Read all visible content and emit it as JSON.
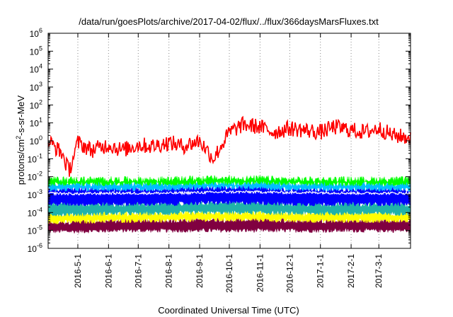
{
  "chart_data": {
    "type": "line",
    "title": "/data/run/goesPlots/archive/2017-04-02/flux/../flux/366daysMarsFluxes.txt",
    "xlabel": "Coordinated Universal Time (UTC)",
    "ylabel": "protons/cm2-s-sr-MeV",
    "ylabel_parts": {
      "pre": "protons/cm",
      "sup": "2",
      "post": "-s-sr-MeV"
    },
    "x_range": [
      "2016-04-01",
      "2017-04-02"
    ],
    "y_scale": "log",
    "ylim": [
      1e-06,
      1000000.0
    ],
    "y_tick_labels": [
      {
        "base": "10",
        "exp": "-6"
      },
      {
        "base": "10",
        "exp": "-5"
      },
      {
        "base": "10",
        "exp": "-4"
      },
      {
        "base": "10",
        "exp": "-3"
      },
      {
        "base": "10",
        "exp": "-2"
      },
      {
        "base": "10",
        "exp": "-1"
      },
      {
        "base": "10",
        "exp": "0"
      },
      {
        "base": "10",
        "exp": "1"
      },
      {
        "base": "10",
        "exp": "2"
      },
      {
        "base": "10",
        "exp": "3"
      },
      {
        "base": "10",
        "exp": "4"
      },
      {
        "base": "10",
        "exp": "5"
      },
      {
        "base": "10",
        "exp": "6"
      }
    ],
    "x_ticks": [
      {
        "date": "2016-05-01",
        "label": "2016-5-1"
      },
      {
        "date": "2016-06-01",
        "label": "2016-6-1"
      },
      {
        "date": "2016-07-01",
        "label": "2016-7-1"
      },
      {
        "date": "2016-08-01",
        "label": "2016-8-1"
      },
      {
        "date": "2016-09-01",
        "label": "2016-9-1"
      },
      {
        "date": "2016-10-01",
        "label": "2016-10-1"
      },
      {
        "date": "2016-11-01",
        "label": "2016-11-1"
      },
      {
        "date": "2016-12-01",
        "label": "2016-12-1"
      },
      {
        "date": "2017-01-01",
        "label": "2017-1-1"
      },
      {
        "date": "2017-02-01",
        "label": "2017-2-1"
      },
      {
        "date": "2017-03-01",
        "label": "2017-3-1"
      }
    ],
    "grid": true,
    "grid_style": "dotted",
    "legend": "none",
    "series": [
      {
        "color": "#800040",
        "kind": "band",
        "x": [
          "2016-04-01",
          "2016-05-01",
          "2016-06-01",
          "2016-07-01",
          "2016-08-01",
          "2016-09-01",
          "2016-10-01",
          "2016-11-01",
          "2016-12-01",
          "2017-01-01",
          "2017-02-01",
          "2017-03-01",
          "2017-04-02"
        ],
        "low": [
          9e-06,
          9e-06,
          1e-05,
          1e-05,
          1e-05,
          1e-05,
          1e-05,
          1e-05,
          1e-05,
          1e-05,
          1e-05,
          1e-05,
          1e-05
        ],
        "high": [
          3e-05,
          3e-05,
          3.5e-05,
          3.5e-05,
          3.5e-05,
          4e-05,
          4e-05,
          4e-05,
          3.5e-05,
          3.5e-05,
          3.5e-05,
          3.5e-05,
          3.5e-05
        ]
      },
      {
        "color": "#ffff00",
        "kind": "band",
        "x": [
          "2016-04-01",
          "2016-05-01",
          "2016-06-01",
          "2016-07-01",
          "2016-08-01",
          "2016-09-01",
          "2016-10-01",
          "2016-11-01",
          "2016-12-01",
          "2017-01-01",
          "2017-02-01",
          "2017-03-01",
          "2017-04-02"
        ],
        "low": [
          3e-05,
          3e-05,
          3.5e-05,
          3.5e-05,
          3.5e-05,
          4e-05,
          4e-05,
          4e-05,
          3.5e-05,
          3.5e-05,
          3.5e-05,
          3.5e-05,
          3.5e-05
        ],
        "high": [
          8e-05,
          8e-05,
          9e-05,
          9e-05,
          9e-05,
          0.0001,
          0.0001,
          0.0001,
          9e-05,
          9e-05,
          9e-05,
          9e-05,
          9e-05
        ]
      },
      {
        "color": "#20b2aa",
        "kind": "band",
        "x": [
          "2016-04-01",
          "2016-05-01",
          "2016-06-01",
          "2016-07-01",
          "2016-08-01",
          "2016-09-01",
          "2016-10-01",
          "2016-11-01",
          "2016-12-01",
          "2017-01-01",
          "2017-02-01",
          "2017-03-01",
          "2017-04-02"
        ],
        "low": [
          8e-05,
          8e-05,
          9e-05,
          9e-05,
          9e-05,
          0.0001,
          0.0001,
          0.0001,
          9e-05,
          9e-05,
          9e-05,
          9e-05,
          9e-05
        ],
        "high": [
          0.0003,
          0.0003,
          0.0003,
          0.0003,
          0.0003,
          0.00035,
          0.00035,
          0.00035,
          0.0003,
          0.0003,
          0.0003,
          0.0003,
          0.0003
        ]
      },
      {
        "color": "#0000ff",
        "kind": "band",
        "x": [
          "2016-04-01",
          "2016-05-01",
          "2016-06-01",
          "2016-07-01",
          "2016-08-01",
          "2016-09-01",
          "2016-10-01",
          "2016-11-01",
          "2016-12-01",
          "2017-01-01",
          "2017-02-01",
          "2017-03-01",
          "2017-04-02"
        ],
        "low": [
          0.0003,
          0.0003,
          0.0003,
          0.0003,
          0.0003,
          0.00035,
          0.00035,
          0.00035,
          0.0003,
          0.0003,
          0.0003,
          0.0003,
          0.0003
        ],
        "high": [
          0.002,
          0.002,
          0.002,
          0.002,
          0.002,
          0.0025,
          0.0025,
          0.0025,
          0.002,
          0.002,
          0.002,
          0.002,
          0.002
        ]
      },
      {
        "color": "#00c0ff",
        "kind": "band",
        "x": [
          "2016-04-01",
          "2016-05-01",
          "2016-06-01",
          "2016-07-01",
          "2016-08-01",
          "2016-09-01",
          "2016-10-01",
          "2016-11-01",
          "2016-12-01",
          "2017-01-01",
          "2017-02-01",
          "2017-03-01",
          "2017-04-02"
        ],
        "low": [
          0.002,
          0.002,
          0.002,
          0.002,
          0.002,
          0.0025,
          0.0025,
          0.0025,
          0.002,
          0.002,
          0.002,
          0.002,
          0.002
        ],
        "high": [
          0.004,
          0.004,
          0.004,
          0.004,
          0.004,
          0.0045,
          0.0045,
          0.0045,
          0.004,
          0.004,
          0.004,
          0.004,
          0.004
        ]
      },
      {
        "color": "#00ff00",
        "kind": "band",
        "x": [
          "2016-04-01",
          "2016-05-01",
          "2016-06-01",
          "2016-07-01",
          "2016-08-01",
          "2016-09-01",
          "2016-10-01",
          "2016-11-01",
          "2016-12-01",
          "2017-01-01",
          "2017-02-01",
          "2017-03-01",
          "2017-04-02"
        ],
        "low": [
          0.004,
          0.004,
          0.004,
          0.004,
          0.004,
          0.0045,
          0.0045,
          0.0045,
          0.004,
          0.004,
          0.004,
          0.004,
          0.004
        ],
        "high": [
          0.007,
          0.007,
          0.007,
          0.007,
          0.007,
          0.008,
          0.008,
          0.008,
          0.007,
          0.007,
          0.007,
          0.007,
          0.007
        ]
      },
      {
        "color": "#ffffff",
        "kind": "line",
        "x": [
          "2016-04-01",
          "2016-05-01",
          "2016-06-01",
          "2016-07-01",
          "2016-08-01",
          "2016-09-01",
          "2016-10-01",
          "2016-11-01",
          "2016-12-01",
          "2017-01-01",
          "2017-02-01",
          "2017-03-01",
          "2017-04-02"
        ],
        "values": [
          0.0012,
          0.0011,
          0.0012,
          0.0012,
          0.0012,
          0.0013,
          0.0014,
          0.0014,
          0.0013,
          0.0013,
          0.0012,
          0.0012,
          0.0012
        ]
      },
      {
        "color": "#ff0000",
        "kind": "line",
        "x": [
          "2016-04-01",
          "2016-04-15",
          "2016-04-22",
          "2016-05-01",
          "2016-05-15",
          "2016-06-01",
          "2016-06-15",
          "2016-07-01",
          "2016-07-15",
          "2016-08-01",
          "2016-08-15",
          "2016-09-01",
          "2016-09-15",
          "2016-10-01",
          "2016-10-15",
          "2016-11-01",
          "2016-11-15",
          "2016-12-01",
          "2016-12-15",
          "2017-01-01",
          "2017-01-15",
          "2017-02-01",
          "2017-02-15",
          "2017-03-01",
          "2017-03-15",
          "2017-04-02"
        ],
        "values": [
          1.0,
          0.2,
          0.02,
          0.8,
          0.3,
          0.6,
          0.3,
          0.6,
          0.5,
          0.8,
          0.5,
          1.0,
          0.1,
          3.0,
          8.0,
          6.0,
          3.0,
          5.0,
          4.0,
          3.0,
          6.0,
          4.0,
          3.0,
          5.0,
          2.0,
          1.5
        ]
      }
    ]
  }
}
